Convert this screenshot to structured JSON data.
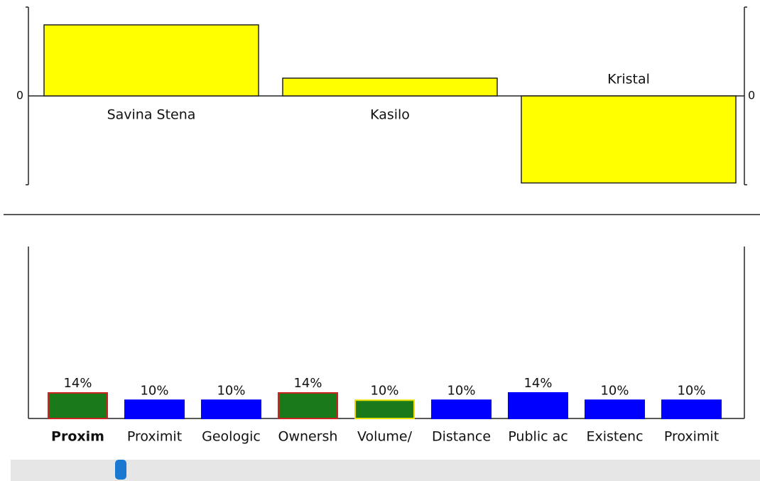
{
  "chart_data": [
    {
      "type": "bar",
      "categories": [
        "Savina Stena",
        "Kasilo",
        "Kristal"
      ],
      "values": [
        0.8,
        0.2,
        -0.98
      ],
      "color": "#ffff00",
      "ylim": [
        -1,
        1
      ],
      "yticks": [
        0
      ]
    },
    {
      "type": "bar",
      "categories": [
        "Proxim",
        "Proximit",
        "Geologic",
        "Ownersh",
        "Volume/",
        "Distance",
        "Public ac",
        "Existenc",
        "Proximit"
      ],
      "values": [
        14,
        10,
        10,
        14,
        10,
        10,
        14,
        10,
        10
      ],
      "value_labels": [
        "14%",
        "10%",
        "10%",
        "14%",
        "10%",
        "10%",
        "14%",
        "10%",
        "10%"
      ],
      "colors": [
        "#1a7a1a",
        "#0000ff",
        "#0000ff",
        "#1a7a1a",
        "#1a7a1a",
        "#0000ff",
        "#0000ff",
        "#0000ff",
        "#0000ff"
      ],
      "border_colors": [
        "#cc2222",
        "#0000ff",
        "#0000ff",
        "#cc2222",
        "#e8e000",
        "#0000ff",
        "#0000ff",
        "#0000ff",
        "#0000ff"
      ],
      "ylim": [
        0,
        100
      ]
    }
  ]
}
